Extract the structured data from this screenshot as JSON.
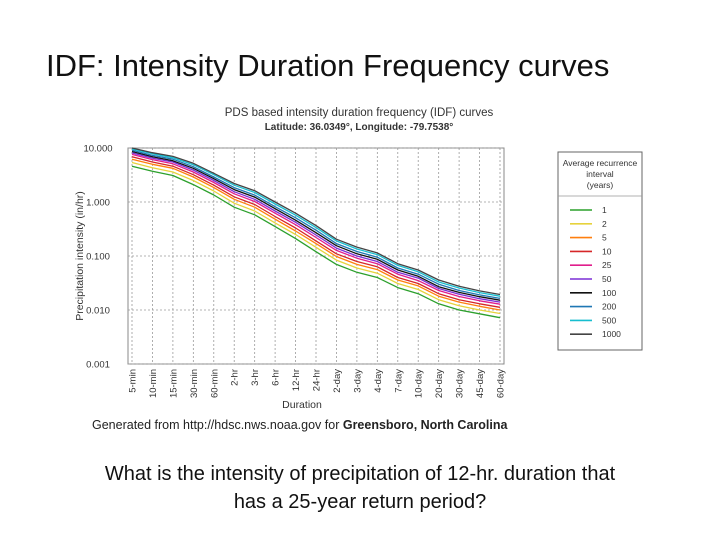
{
  "slide": {
    "title": "IDF: Intensity Duration Frequency curves",
    "caption_prefix": "Generated from http://hdsc.nws.noaa.gov for ",
    "caption_location": "Greensboro, North Carolina",
    "question_line1": "What is the intensity of precipitation of 12-hr. duration that",
    "question_line2": "has a 25-year return period?"
  },
  "chart_data": {
    "type": "line",
    "title": "PDS based intensity duration frequency (IDF) curves",
    "subtitle": "Latitude: 36.0349°, Longitude: -79.7538°",
    "xlabel": "Duration",
    "ylabel": "Precipitation intensity (in/hr)",
    "y_scale": "log",
    "ylim": [
      0.001,
      10
    ],
    "y_ticks": [
      "0.001",
      "0.010",
      "0.100",
      "1.000",
      "10.000"
    ],
    "y_tick_values": [
      0.001,
      0.01,
      0.1,
      1,
      10
    ],
    "categories": [
      "5-min",
      "10-min",
      "15-min",
      "30-min",
      "60-min",
      "2-hr",
      "3-hr",
      "6-hr",
      "12-hr",
      "24-hr",
      "2-day",
      "3-day",
      "4-day",
      "7-day",
      "10-day",
      "20-day",
      "30-day",
      "45-day",
      "60-day"
    ],
    "x_positions": [
      0,
      1,
      2,
      3,
      4,
      5,
      6,
      7,
      8,
      9,
      10,
      11,
      12,
      13,
      14,
      15,
      16,
      17,
      18
    ],
    "grid": true,
    "legend_title": "Average recurrence interval (years)",
    "legend_position": "right",
    "series": [
      {
        "name": "1",
        "color": "#2ca02c",
        "values": [
          4.6,
          3.7,
          3.1,
          2.1,
          1.35,
          0.8,
          0.58,
          0.35,
          0.21,
          0.12,
          0.07,
          0.05,
          0.04,
          0.026,
          0.02,
          0.013,
          0.01,
          0.0085,
          0.0072
        ]
      },
      {
        "name": "2",
        "color": "#e6d23c",
        "values": [
          5.4,
          4.3,
          3.6,
          2.5,
          1.6,
          0.95,
          0.68,
          0.41,
          0.25,
          0.145,
          0.084,
          0.06,
          0.048,
          0.031,
          0.024,
          0.0155,
          0.012,
          0.01,
          0.0086
        ]
      },
      {
        "name": "5",
        "color": "#ff7f0e",
        "values": [
          6.2,
          5.0,
          4.2,
          2.9,
          1.85,
          1.12,
          0.8,
          0.48,
          0.29,
          0.17,
          0.098,
          0.07,
          0.056,
          0.036,
          0.028,
          0.018,
          0.014,
          0.0117,
          0.01
        ]
      },
      {
        "name": "10",
        "color": "#d62728",
        "values": [
          6.9,
          5.5,
          4.6,
          3.2,
          2.05,
          1.25,
          0.9,
          0.54,
          0.33,
          0.19,
          0.11,
          0.079,
          0.063,
          0.04,
          0.031,
          0.02,
          0.0155,
          0.013,
          0.0112
        ]
      },
      {
        "name": "25",
        "color": "#e01e8c",
        "values": [
          7.6,
          6.1,
          5.1,
          3.6,
          2.3,
          1.42,
          1.02,
          0.62,
          0.38,
          0.22,
          0.127,
          0.091,
          0.072,
          0.046,
          0.035,
          0.023,
          0.0178,
          0.0148,
          0.0128
        ]
      },
      {
        "name": "50",
        "color": "#7b2fd6",
        "values": [
          8.1,
          6.5,
          5.5,
          3.9,
          2.5,
          1.55,
          1.12,
          0.68,
          0.42,
          0.245,
          0.14,
          0.1,
          0.079,
          0.05,
          0.039,
          0.025,
          0.0195,
          0.0162,
          0.014
        ]
      },
      {
        "name": "100",
        "color": "#111111",
        "values": [
          8.6,
          6.9,
          5.8,
          4.2,
          2.7,
          1.7,
          1.23,
          0.75,
          0.46,
          0.27,
          0.155,
          0.11,
          0.087,
          0.055,
          0.042,
          0.027,
          0.0212,
          0.0176,
          0.0152
        ]
      },
      {
        "name": "200",
        "color": "#1f77b4",
        "values": [
          9.1,
          7.3,
          6.2,
          4.5,
          2.9,
          1.85,
          1.34,
          0.82,
          0.51,
          0.3,
          0.17,
          0.121,
          0.095,
          0.06,
          0.046,
          0.03,
          0.023,
          0.019,
          0.0164
        ]
      },
      {
        "name": "500",
        "color": "#17becf",
        "values": [
          9.6,
          7.8,
          6.6,
          4.9,
          3.2,
          2.05,
          1.5,
          0.92,
          0.57,
          0.335,
          0.19,
          0.135,
          0.106,
          0.067,
          0.051,
          0.033,
          0.0255,
          0.021,
          0.018
        ]
      },
      {
        "name": "1000",
        "color": "#444444",
        "values": [
          10.0,
          8.2,
          7.0,
          5.2,
          3.4,
          2.2,
          1.62,
          1.0,
          0.62,
          0.365,
          0.205,
          0.146,
          0.114,
          0.072,
          0.055,
          0.036,
          0.0275,
          0.0226,
          0.0194
        ]
      }
    ]
  }
}
